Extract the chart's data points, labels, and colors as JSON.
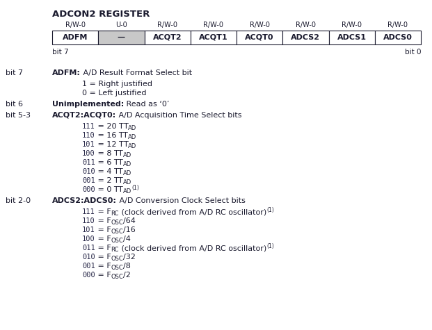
{
  "title": "ADCON2 REGISTER",
  "register_labels": [
    "ADFM",
    "—",
    "ACQT2",
    "ACQT1",
    "ACQT0",
    "ADCS2",
    "ADCS1",
    "ADCS0"
  ],
  "access_labels": [
    "R/W-0",
    "U-0",
    "R/W-0",
    "R/W-0",
    "R/W-0",
    "R/W-0",
    "R/W-0",
    "R/W-0"
  ],
  "shaded_cell": 1,
  "bg_color": "#ffffff",
  "cell_border_color": "#1a1a2e",
  "shaded_color": "#c8c8c8",
  "text_color": "#1a1a2e",
  "code_color": "#2a2a4a",
  "fig_width": 6.21,
  "fig_height": 4.75,
  "dpi": 100
}
